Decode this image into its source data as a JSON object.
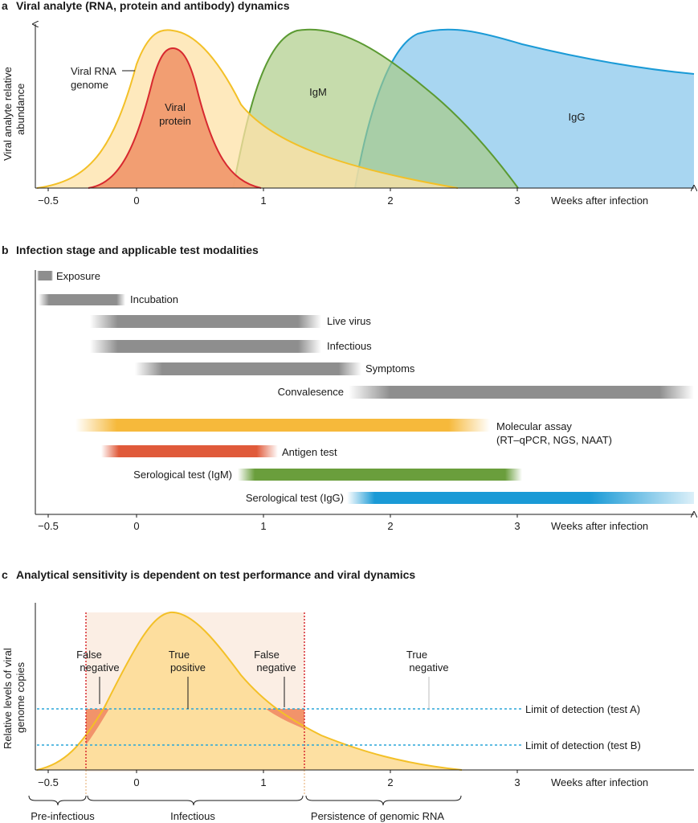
{
  "panel_a": {
    "letter": "a",
    "title": "Viral analyte (RNA, protein and antibody) dynamics",
    "ylabel_line1": "Viral analyte relative",
    "ylabel_line2": "abundance",
    "xlabel": "Weeks after infection",
    "ticks": [
      "−0.5",
      "0",
      "1",
      "2",
      "3"
    ],
    "labels": {
      "viral_rna_1": "Viral RNA",
      "viral_rna_2": "genome",
      "viral_protein_1": "Viral",
      "viral_protein_2": "protein",
      "igm": "IgM",
      "igg": "IgG"
    }
  },
  "panel_b": {
    "letter": "b",
    "title": "Infection stage and applicable test modalities",
    "xlabel": "Weeks after infection",
    "ticks": [
      "−0.5",
      "0",
      "1",
      "2",
      "3"
    ],
    "bars": [
      {
        "label": "Exposure",
        "start": -0.5,
        "end": -0.38,
        "color": "#8e8e8e"
      },
      {
        "label": "Incubation",
        "start": -0.5,
        "end": -0.05,
        "color": "#8e8e8e"
      },
      {
        "label": "Live virus",
        "start": -0.1,
        "end": 1.45,
        "color": "#8e8e8e"
      },
      {
        "label": "Infectious",
        "start": -0.1,
        "end": 1.45,
        "color": "#8e8e8e"
      },
      {
        "label": "Symptoms",
        "start": 0.0,
        "end": 1.75,
        "color": "#8e8e8e"
      },
      {
        "label": "Convalesence",
        "start": 1.7,
        "end": 4.4,
        "color": "#8e8e8e"
      },
      {
        "label_line1": "Molecular assay",
        "label_line2": "(RT–qPCR, NGS, NAAT)",
        "start": -0.45,
        "end": 2.75,
        "color": "#f6b93b"
      },
      {
        "label": "Antigen test",
        "start": -0.25,
        "end": 1.1,
        "color": "#e05a3a"
      },
      {
        "label": "Serological test (IgM)",
        "start": 0.85,
        "end": 3.0,
        "color": "#6a9e3c"
      },
      {
        "label": "Serological test (IgG)",
        "start": 1.7,
        "end": 4.4,
        "color": "#1a9ad6"
      }
    ]
  },
  "panel_c": {
    "letter": "c",
    "title": "Analytical sensitivity is dependent on test performance and viral dynamics",
    "ylabel_line1": "Relative levels of viral",
    "ylabel_line2": "genome copies",
    "xlabel": "Weeks after infection",
    "ticks": [
      "−0.5",
      "0",
      "1",
      "2",
      "3"
    ],
    "labels": {
      "false_neg_left_1": "False",
      "false_neg_left_2": "negative",
      "true_pos_1": "True",
      "true_pos_2": "positive",
      "false_neg_right_1": "False",
      "false_neg_right_2": "negative",
      "true_neg_1": "True",
      "true_neg_2": "negative",
      "lod_a": "Limit of detection (test A)",
      "lod_b": "Limit of detection (test B)"
    },
    "phases": {
      "pre_infectious": "Pre-infectious",
      "infectious": "Infectious",
      "persistence": "Persistence of genomic RNA"
    }
  },
  "colors": {
    "rna": "#f3c027",
    "rna_fill": "#fde2a7",
    "protein": "#d7282f",
    "protein_fill": "#f19a6e",
    "igm": "#5b9a32",
    "igm_fill": "#b5d28f",
    "igg": "#1a9ad6",
    "igg_fill": "#9fd2ef",
    "axis": "#1a1a1a",
    "lod": "#2aa6d8",
    "infectious_line": "#d7282f"
  }
}
